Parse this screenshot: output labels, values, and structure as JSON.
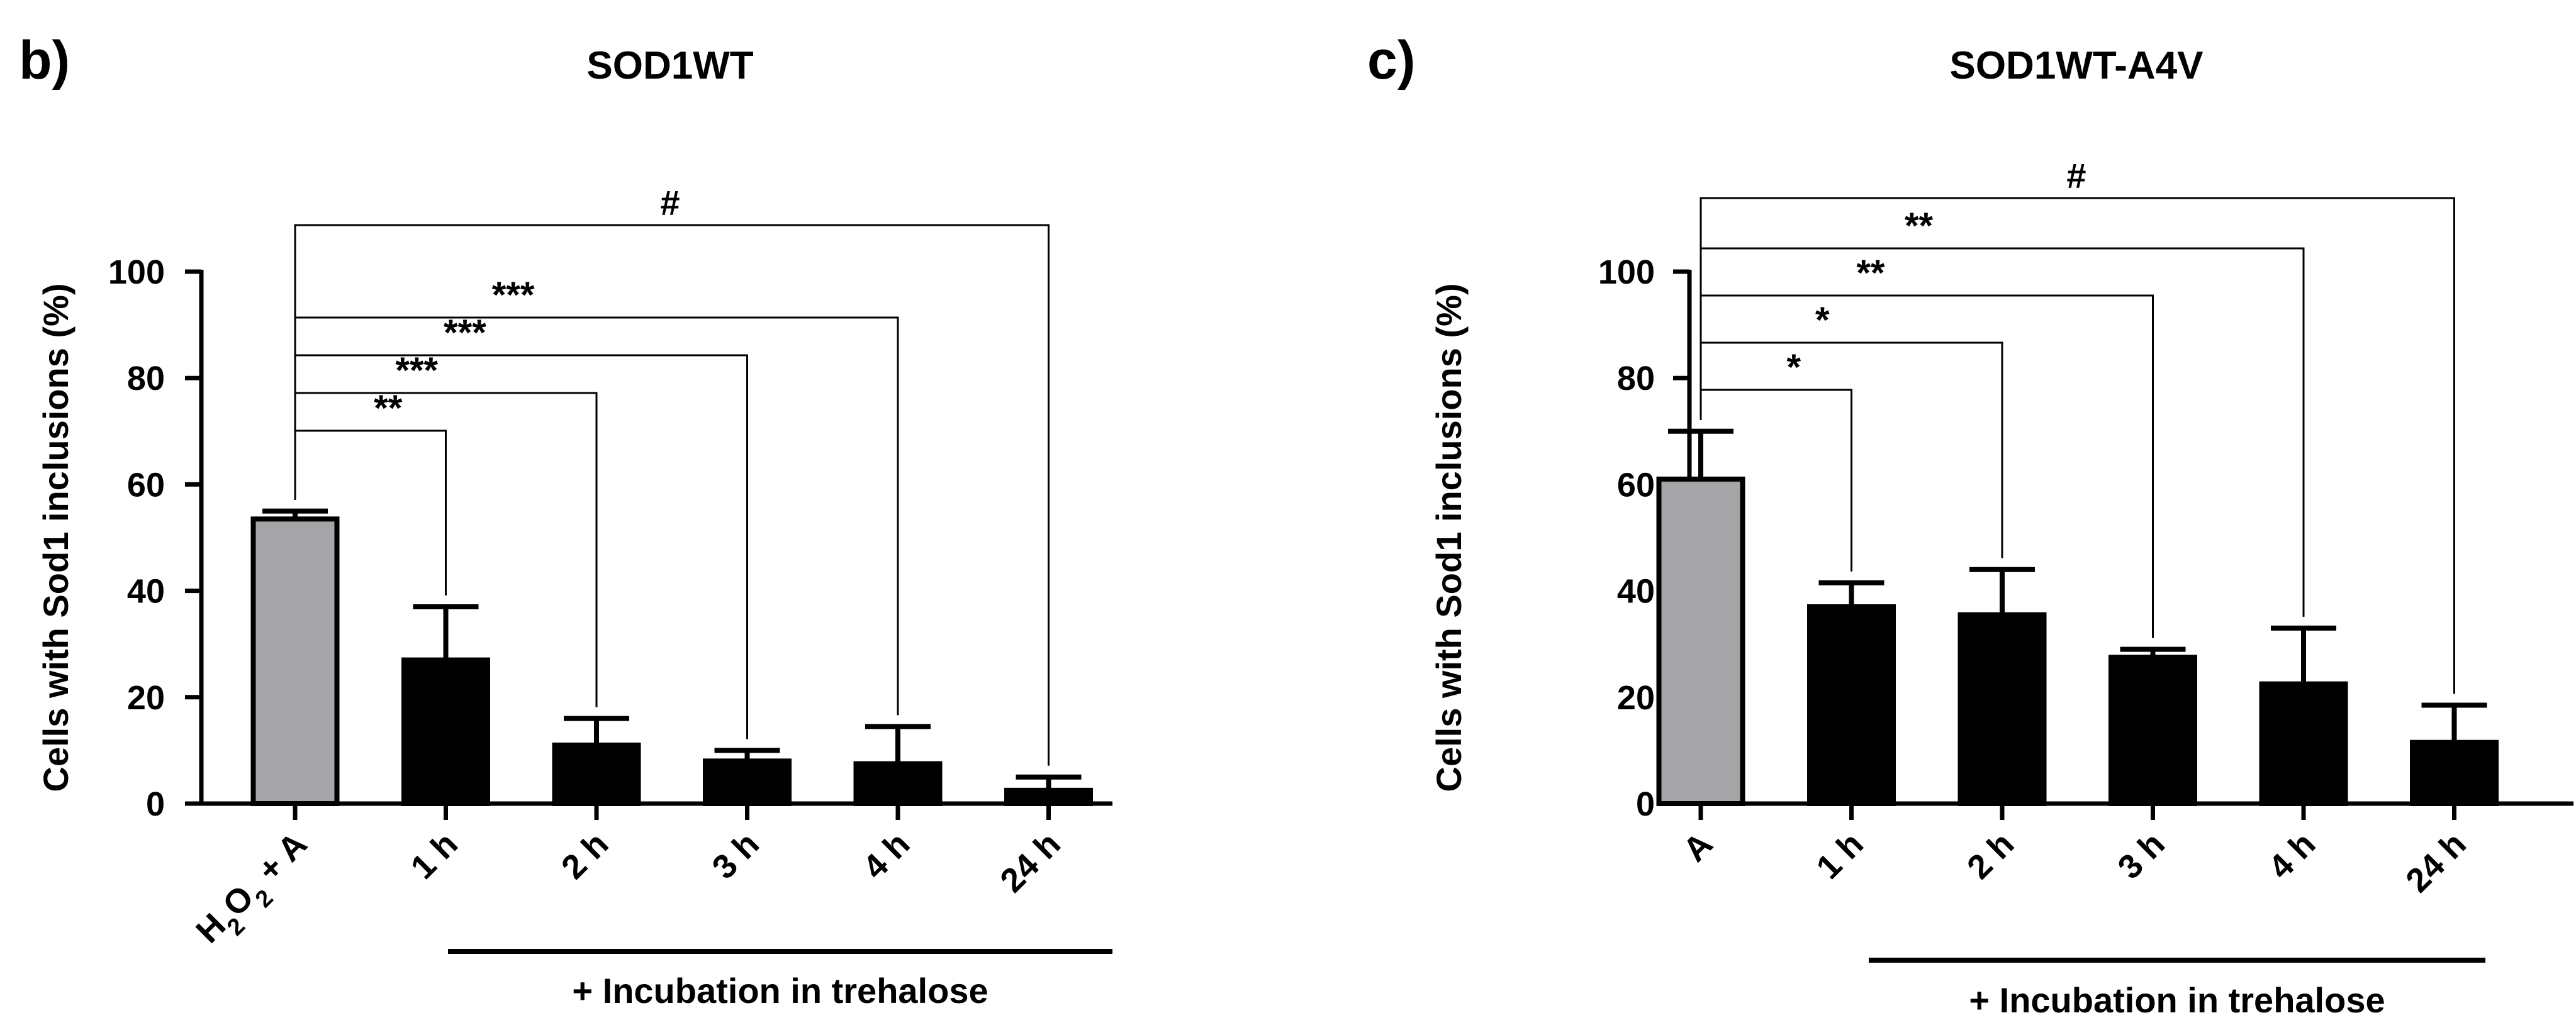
{
  "chart_data": [
    {
      "type": "bar",
      "panel_label": "b)",
      "title": "SOD1WT",
      "ylabel": "Cells with Sod1 inclusions (%)",
      "xlabel": "",
      "ylim": [
        0,
        100
      ],
      "yticks": [
        0,
        20,
        40,
        60,
        80,
        100
      ],
      "categories": [
        "H2O2 + A",
        "1 h",
        "2 h",
        "3 h",
        "4 h",
        "24 h"
      ],
      "category_label_parts": {
        "0": [
          "H",
          "2",
          "O",
          "2",
          " + A"
        ]
      },
      "values": [
        53.5,
        27.0,
        11.0,
        8.0,
        7.5,
        2.5
      ],
      "error_upper": [
        55.0,
        37.0,
        16.0,
        10.0,
        14.5,
        5.0
      ],
      "bar_colors": [
        "#a5a5a8",
        "#000000",
        "#000000",
        "#000000",
        "#000000",
        "#000000"
      ],
      "group_underline_label": "+ Incubation in trehalose",
      "significance": [
        {
          "from": 0,
          "to": 1,
          "label": "**"
        },
        {
          "from": 0,
          "to": 2,
          "label": "***"
        },
        {
          "from": 0,
          "to": 3,
          "label": "***"
        },
        {
          "from": 0,
          "to": 4,
          "label": "***"
        },
        {
          "from": 0,
          "to": 5,
          "label": "#"
        }
      ]
    },
    {
      "type": "bar",
      "panel_label": "c)",
      "title": "SOD1WT-A4V",
      "ylabel": "Cells with Sod1 inclusions (%)",
      "xlabel": "",
      "ylim": [
        0,
        100
      ],
      "yticks": [
        0,
        20,
        40,
        60,
        80,
        100
      ],
      "categories": [
        "A",
        "1 h",
        "2 h",
        "3 h",
        "4 h",
        "24 h"
      ],
      "values": [
        61.0,
        37.0,
        35.5,
        27.5,
        22.5,
        11.5
      ],
      "error_upper": [
        70.0,
        41.5,
        44.0,
        29.0,
        33.0,
        18.5
      ],
      "bar_colors": [
        "#a5a5a8",
        "#000000",
        "#000000",
        "#000000",
        "#000000",
        "#000000"
      ],
      "group_underline_label": "+ Incubation in trehalose",
      "significance": [
        {
          "from": 0,
          "to": 1,
          "label": "*"
        },
        {
          "from": 0,
          "to": 2,
          "label": "*"
        },
        {
          "from": 0,
          "to": 3,
          "label": "**"
        },
        {
          "from": 0,
          "to": 4,
          "label": "**"
        },
        {
          "from": 0,
          "to": 5,
          "label": "#"
        }
      ]
    }
  ]
}
